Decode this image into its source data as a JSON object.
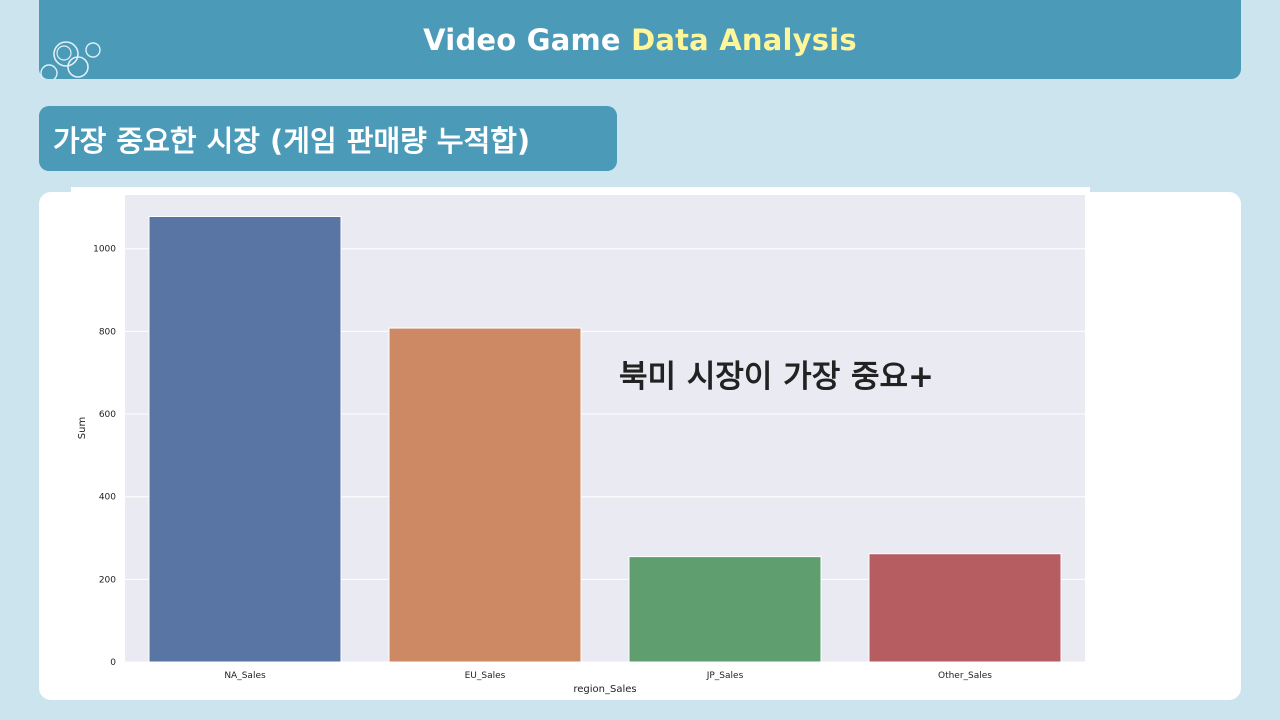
{
  "header": {
    "title_part1": "Video Game",
    "title_part2": "Data Analysis",
    "accent_color": "#fff59a",
    "background_color": "#4a9ab8"
  },
  "section": {
    "title": "가장 중요한 시장 (게임 판매량 누적합)"
  },
  "annotation": {
    "text": "북미 시장이 가장 중요+"
  },
  "chart_data": {
    "type": "bar",
    "categories": [
      "NA_Sales",
      "EU_Sales",
      "JP_Sales",
      "Other_Sales"
    ],
    "values": [
      1078,
      808,
      255,
      262
    ],
    "colors": [
      "#5975a4",
      "#cc8963",
      "#5f9e6e",
      "#b55d60"
    ],
    "xlabel": "region_Sales",
    "ylabel": "Sum",
    "ylim": [
      0,
      1130
    ],
    "yticks": [
      0,
      200,
      400,
      600,
      800,
      1000
    ],
    "grid": true,
    "plot_background": "#eaeaf2"
  }
}
